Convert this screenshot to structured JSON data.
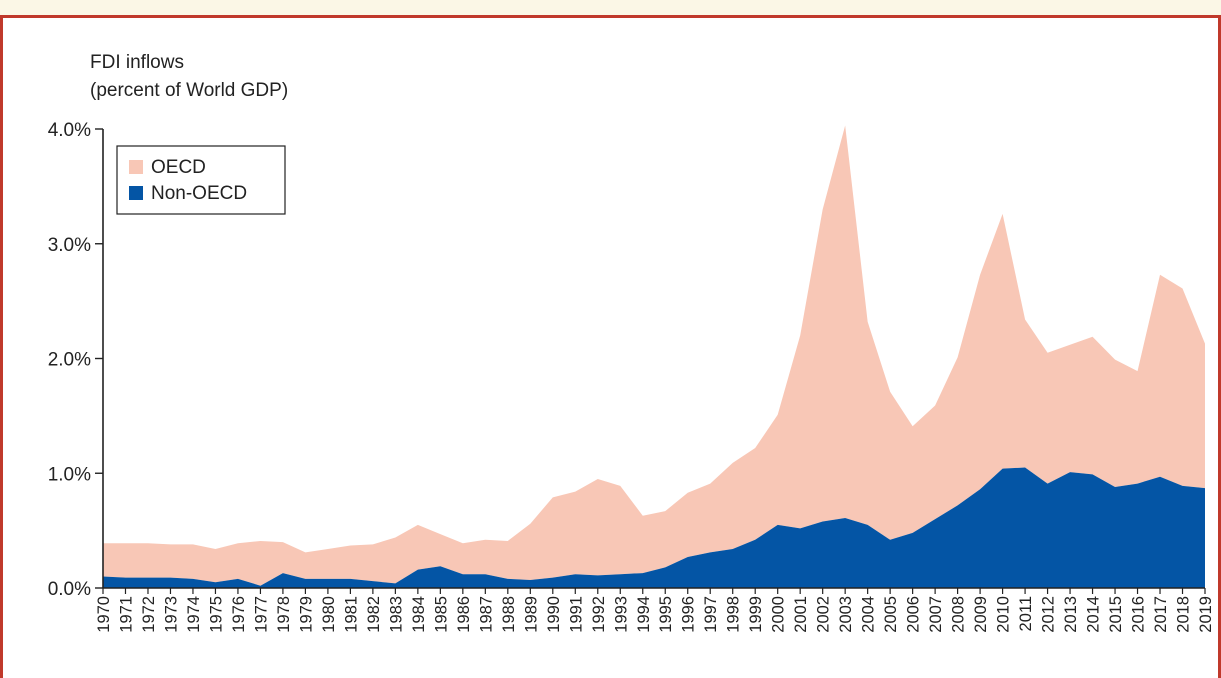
{
  "chart_data": {
    "type": "area",
    "stacked": true,
    "title_lines": [
      "FDI inflows",
      "(percent of World GDP)"
    ],
    "xlabel": "",
    "ylabel": "",
    "ylim": [
      0,
      4
    ],
    "y_ticks": [
      {
        "value": 0,
        "label": "0.0%"
      },
      {
        "value": 1,
        "label": "1.0%"
      },
      {
        "value": 2,
        "label": "2.0%"
      },
      {
        "value": 3,
        "label": "3.0%"
      },
      {
        "value": 4,
        "label": "4.0%"
      }
    ],
    "x": [
      "1970",
      "1971",
      "1972",
      "1973",
      "1974",
      "1975",
      "1976",
      "1977",
      "1978",
      "1979",
      "1980",
      "1981",
      "1982",
      "1983",
      "1984",
      "1985",
      "1986",
      "1987",
      "1988",
      "1989",
      "1990",
      "1991",
      "1992",
      "1993",
      "1994",
      "1995",
      "1996",
      "1997",
      "1998",
      "1999",
      "2000",
      "2001",
      "2002",
      "2003",
      "2004",
      "2005",
      "2006",
      "2007",
      "2008",
      "2009",
      "2010",
      "2011",
      "2012",
      "2013",
      "2014",
      "2015",
      "2016",
      "2017",
      "2018",
      "2019"
    ],
    "series": [
      {
        "name": "Non-OECD",
        "color": "#0455a5",
        "values": [
          0.1,
          0.09,
          0.09,
          0.09,
          0.08,
          0.05,
          0.08,
          0.02,
          0.13,
          0.08,
          0.08,
          0.08,
          0.06,
          0.04,
          0.16,
          0.19,
          0.12,
          0.12,
          0.08,
          0.07,
          0.09,
          0.12,
          0.11,
          0.12,
          0.13,
          0.18,
          0.27,
          0.31,
          0.34,
          0.42,
          0.55,
          0.52,
          0.58,
          0.61,
          0.55,
          0.42,
          0.48,
          0.6,
          0.72,
          0.86,
          1.04,
          1.05,
          0.91,
          1.01,
          0.99,
          0.88,
          0.91,
          0.97,
          0.89,
          0.87
        ]
      },
      {
        "name": "OECD",
        "color": "#f8c7b6",
        "values": [
          0.29,
          0.3,
          0.3,
          0.29,
          0.3,
          0.29,
          0.31,
          0.39,
          0.27,
          0.23,
          0.26,
          0.29,
          0.32,
          0.4,
          0.39,
          0.28,
          0.27,
          0.3,
          0.33,
          0.49,
          0.7,
          0.72,
          0.84,
          0.77,
          0.5,
          0.49,
          0.56,
          0.6,
          0.75,
          0.8,
          0.96,
          1.68,
          2.72,
          3.42,
          1.77,
          1.29,
          0.93,
          0.99,
          1.29,
          1.87,
          2.22,
          1.29,
          1.14,
          1.11,
          1.2,
          1.11,
          0.98,
          1.76,
          1.72,
          1.26
        ]
      }
    ],
    "legend": {
      "placement": "top-left",
      "entries": [
        {
          "label": "OECD",
          "color": "#f8c7b6"
        },
        {
          "label": "Non-OECD",
          "color": "#0455a5"
        }
      ]
    },
    "grid": false
  }
}
